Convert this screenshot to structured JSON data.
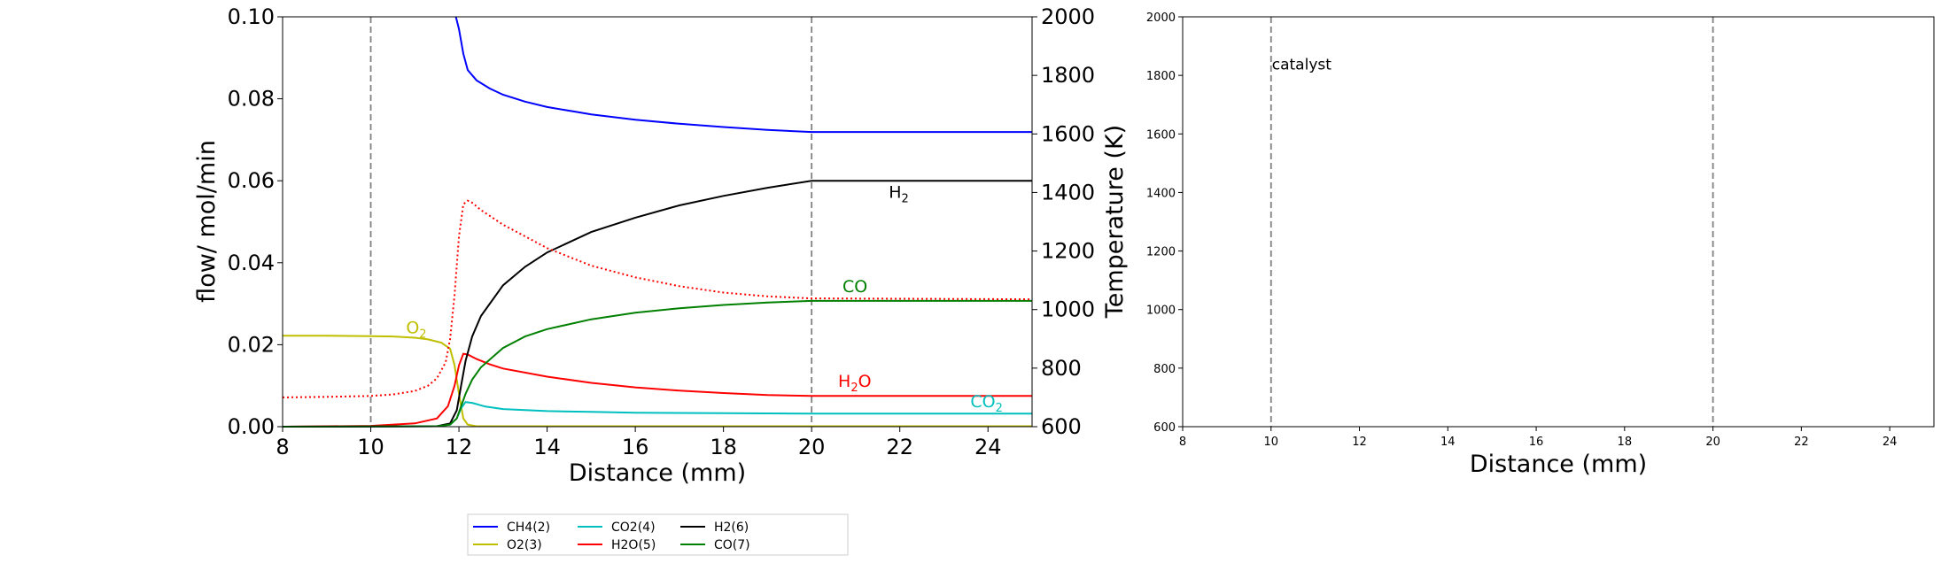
{
  "chart_data": [
    {
      "type": "line",
      "xlabel": "Distance (mm)",
      "ylabel": "flow/ mol/min",
      "y2label": "Temperature (K)",
      "xlim": [
        8,
        25
      ],
      "ylim": [
        0,
        0.1
      ],
      "y2lim": [
        600,
        2000
      ],
      "xticks": [
        "8",
        "10",
        "12",
        "14",
        "16",
        "18",
        "20",
        "22",
        "24"
      ],
      "yticks": [
        "0.00",
        "0.02",
        "0.04",
        "0.06",
        "0.08",
        "0.10"
      ],
      "y2ticks": [
        "600",
        "800",
        "1000",
        "1200",
        "1400",
        "1600",
        "1800",
        "2000"
      ],
      "vlines": [
        10,
        20
      ],
      "series": [
        {
          "name": "CH4(2)",
          "color": "#0000ff",
          "style": "solid",
          "x": [
            11.93,
            12.0,
            12.1,
            12.2,
            12.4,
            12.7,
            13.0,
            13.5,
            14,
            15,
            16,
            17,
            18,
            19,
            20,
            25
          ],
          "y": [
            0.1,
            0.097,
            0.091,
            0.087,
            0.0845,
            0.0825,
            0.081,
            0.0793,
            0.078,
            0.0762,
            0.0749,
            0.0739,
            0.0731,
            0.0724,
            0.0719,
            0.0719
          ]
        },
        {
          "name": "O2(3)",
          "color": "#bfbf00",
          "style": "solid",
          "x": [
            8,
            9,
            10,
            10.5,
            11,
            11.3,
            11.6,
            11.8,
            11.9,
            12.0,
            12.1,
            12.2,
            12.4,
            25
          ],
          "y": [
            0.0222,
            0.0222,
            0.0221,
            0.022,
            0.0217,
            0.0213,
            0.0205,
            0.019,
            0.015,
            0.008,
            0.002,
            0.0005,
            0.0001,
            0.0001
          ]
        },
        {
          "name": "CO2(4)",
          "color": "#00bfbf",
          "style": "solid",
          "x": [
            8,
            11.5,
            11.8,
            11.95,
            12.05,
            12.15,
            12.3,
            12.6,
            13,
            14,
            15,
            16,
            18,
            20,
            25
          ],
          "y": [
            0,
            0.0001,
            0.0005,
            0.002,
            0.0045,
            0.006,
            0.0058,
            0.0049,
            0.0043,
            0.0038,
            0.0036,
            0.0034,
            0.0033,
            0.0032,
            0.0032
          ]
        },
        {
          "name": "H2O(5)",
          "color": "#ff0000",
          "style": "solid",
          "x": [
            8,
            10,
            11,
            11.5,
            11.75,
            11.9,
            12.0,
            12.1,
            12.2,
            12.4,
            12.7,
            13,
            14,
            15,
            16,
            17,
            18,
            19,
            20,
            25
          ],
          "y": [
            0,
            0.0002,
            0.0008,
            0.002,
            0.005,
            0.01,
            0.015,
            0.0178,
            0.0176,
            0.0165,
            0.0152,
            0.0142,
            0.0122,
            0.0107,
            0.0096,
            0.0088,
            0.0082,
            0.0077,
            0.0075,
            0.0075
          ]
        },
        {
          "name": "H2(6)",
          "color": "#000000",
          "style": "solid",
          "x": [
            8,
            11.5,
            11.8,
            11.95,
            12.05,
            12.15,
            12.3,
            12.5,
            13,
            13.5,
            14,
            15,
            16,
            17,
            18,
            19,
            20,
            25
          ],
          "y": [
            0,
            0.0001,
            0.0008,
            0.004,
            0.01,
            0.016,
            0.022,
            0.027,
            0.0345,
            0.039,
            0.0425,
            0.0475,
            0.051,
            0.054,
            0.0563,
            0.0583,
            0.06,
            0.06
          ]
        },
        {
          "name": "CO(7)",
          "color": "#008000",
          "style": "solid",
          "x": [
            8,
            11.5,
            11.8,
            11.95,
            12.05,
            12.15,
            12.3,
            12.5,
            13,
            13.5,
            14,
            15,
            16,
            17,
            18,
            19,
            20,
            25
          ],
          "y": [
            0,
            0.0001,
            0.0005,
            0.002,
            0.005,
            0.008,
            0.0115,
            0.0145,
            0.0192,
            0.022,
            0.0238,
            0.0262,
            0.0278,
            0.0289,
            0.0297,
            0.0303,
            0.0307,
            0.0307
          ]
        },
        {
          "name": "",
          "color": "#ff0000",
          "style": "dotted",
          "axis": "y2",
          "x": [
            8,
            9,
            10,
            10.5,
            11,
            11.3,
            11.5,
            11.7,
            11.8,
            11.9,
            12.0,
            12.1,
            12.2,
            12.3,
            12.5,
            13,
            13.5,
            14,
            15,
            16,
            17,
            18,
            19,
            20,
            25
          ],
          "y": [
            700,
            702,
            705,
            710,
            722,
            740,
            765,
            820,
            900,
            1050,
            1250,
            1360,
            1372,
            1365,
            1340,
            1290,
            1250,
            1210,
            1150,
            1110,
            1080,
            1058,
            1045,
            1038,
            1035
          ]
        }
      ],
      "annotations": [
        {
          "text": "O",
          "sub": "2",
          "x": 10.8,
          "y": 0.0228,
          "color": "#bfbf00"
        },
        {
          "text": "CO",
          "sub": "",
          "x": 20.7,
          "y": 0.0328,
          "color": "#008000"
        },
        {
          "text": "H",
          "sub": "2",
          "x": 21.75,
          "y": 0.0558,
          "color": "#000000"
        },
        {
          "text": "H",
          "sub": "2",
          "tail": "O",
          "x": 20.6,
          "y": 0.0097,
          "color": "#ff0000"
        },
        {
          "text": "CO",
          "sub": "2",
          "x": 23.6,
          "y": 0.0048,
          "color": "#00bfbf"
        }
      ],
      "legend": {
        "placement": "lower-center",
        "entries": [
          {
            "label": "CH4(2)",
            "color": "#0000ff"
          },
          {
            "label": "O2(3)",
            "color": "#bfbf00"
          },
          {
            "label": "CO2(4)",
            "color": "#00bfbf"
          },
          {
            "label": "H2O(5)",
            "color": "#ff0000"
          },
          {
            "label": "H2(6)",
            "color": "#000000"
          },
          {
            "label": "CO(7)",
            "color": "#008000"
          }
        ]
      }
    },
    {
      "type": "line",
      "xlabel": "Distance (mm)",
      "ylabel": "",
      "xlim": [
        8,
        25
      ],
      "ylim": [
        600,
        2000
      ],
      "xticks": [
        "8",
        "10",
        "12",
        "14",
        "16",
        "18",
        "20",
        "22",
        "24"
      ],
      "yticks": [
        "600",
        "800",
        "1000",
        "1200",
        "1400",
        "1600",
        "1800",
        "2000"
      ],
      "vlines": [
        10,
        20
      ],
      "annotation": {
        "text": "catalyst",
        "x": 10.0,
        "y": 1820
      },
      "series": []
    }
  ]
}
